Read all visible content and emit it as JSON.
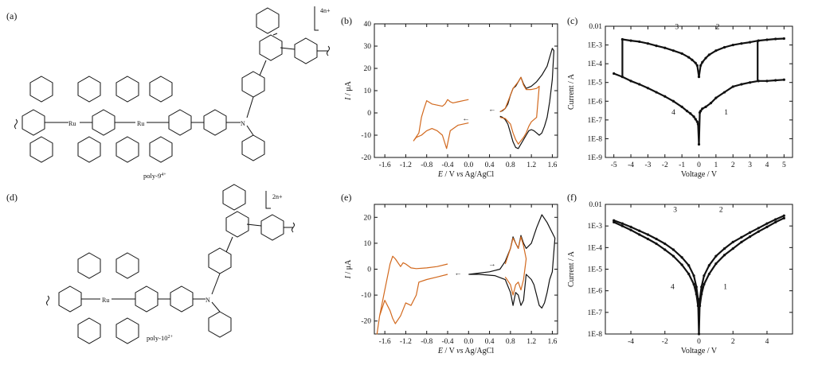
{
  "panels": {
    "a": {
      "label": "(a)",
      "compound": "poly-9",
      "charge_sup": "4+",
      "repeat_charge": "4n+"
    },
    "d": {
      "label": "(d)",
      "compound": "poly-10",
      "charge_sup": "2+",
      "repeat_charge": "2n+"
    }
  },
  "atoms": {
    "N": "N",
    "Ru": "Ru"
  },
  "colors": {
    "cv_oxidation": "#111111",
    "cv_reduction": "#d2691e",
    "iv": "#111111"
  },
  "chart_data": [
    {
      "id": "b",
      "label": "(b)",
      "type": "line",
      "xlabel_parts": [
        "E",
        " / V ",
        "vs",
        " Ag/AgCl"
      ],
      "ylabel_parts": [
        "I",
        " / μA"
      ],
      "xlim": [
        -1.8,
        1.7
      ],
      "ylim": [
        -20,
        40
      ],
      "xticks": [
        -1.6,
        -1.2,
        -0.8,
        -0.4,
        0.0,
        0.4,
        0.8,
        1.2,
        1.6
      ],
      "xtick_labels": [
        "-1.6",
        "-1.2",
        "-0.8",
        "-0.4",
        "0.0",
        "0.4",
        "0.8",
        "1.2",
        "1.6"
      ],
      "yticks": [
        -20,
        -10,
        0,
        10,
        20,
        30,
        40
      ],
      "series": [
        {
          "color": "#111111",
          "x": [
            0.6,
            0.65,
            0.7,
            0.75,
            0.8,
            0.85,
            0.9,
            0.95,
            1.0,
            1.05,
            1.1,
            1.15,
            1.2,
            1.3,
            1.4,
            1.5,
            1.55,
            1.6,
            1.63,
            1.6,
            1.55,
            1.5,
            1.45,
            1.4,
            1.35,
            1.3,
            1.25,
            1.2,
            1.15,
            1.1,
            1.05,
            1.0,
            0.95,
            0.9,
            0.85,
            0.8,
            0.75,
            0.7,
            0.65,
            0.6
          ],
          "y": [
            0.5,
            1.0,
            2.0,
            4.0,
            8.0,
            11.0,
            12.0,
            14.0,
            16.0,
            13.0,
            11.0,
            11.5,
            12.0,
            14.0,
            17.0,
            21.0,
            25.0,
            29.0,
            28.0,
            15.0,
            5.0,
            -2.0,
            -6.0,
            -9.0,
            -10.0,
            -9.0,
            -8.0,
            -7.5,
            -8.0,
            -10.0,
            -12.0,
            -14.0,
            -16.0,
            -15.5,
            -13.0,
            -9.0,
            -5.0,
            -3.0,
            -2.0,
            -1.5
          ]
        },
        {
          "color": "#d2691e",
          "x": [
            0.6,
            0.7,
            0.8,
            0.85,
            0.9,
            0.95,
            1.0,
            1.05,
            1.1,
            1.2,
            1.3,
            1.35,
            1.3,
            1.2,
            1.15,
            1.1,
            1.05,
            1.0,
            0.95,
            0.9,
            0.85,
            0.8,
            0.7,
            0.6
          ],
          "y": [
            0.5,
            2.0,
            8.0,
            11.0,
            12.5,
            14.0,
            16.0,
            12.5,
            10.5,
            10.5,
            11.0,
            12.0,
            -2.0,
            -4.0,
            -6.0,
            -9.0,
            -11.0,
            -12.5,
            -14.0,
            -12.0,
            -9.0,
            -5.0,
            -2.5,
            -2.0
          ]
        },
        {
          "color": "#d2691e",
          "x": [
            0.0,
            -0.2,
            -0.35,
            -0.42,
            -0.5,
            -0.6,
            -0.7,
            -0.8,
            -0.9,
            -1.0,
            -1.05,
            -0.95,
            -0.9,
            -0.85,
            -0.8,
            -0.7,
            -0.6,
            -0.5,
            -0.45,
            -0.4,
            -0.35,
            -0.3,
            -0.2,
            -0.1,
            0.0
          ],
          "y": [
            -4.5,
            -5.5,
            -8.0,
            -16.0,
            -10.0,
            -8.0,
            -7.0,
            -8.0,
            -10.0,
            -11.0,
            -12.5,
            -9.0,
            -2.0,
            2.0,
            5.5,
            4.0,
            3.5,
            3.0,
            4.0,
            6.0,
            5.0,
            4.5,
            5.0,
            5.5,
            6.0
          ]
        }
      ],
      "annotations": [
        {
          "text": "←",
          "x": 0.45,
          "y": 0.5
        },
        {
          "text": "←",
          "x": -0.05,
          "y": -3.5
        }
      ]
    },
    {
      "id": "c",
      "label": "(c)",
      "type": "scatter",
      "xlabel": "Voltage / V",
      "ylabel": "Current / A",
      "yscale": "log",
      "xlim": [
        -5.5,
        5.5
      ],
      "ylim": [
        1e-09,
        0.01
      ],
      "xticks": [
        -5,
        -4,
        -3,
        -2,
        -1,
        0,
        1,
        2,
        3,
        4,
        5
      ],
      "xtick_labels": [
        "-5",
        "-4",
        "-3",
        "-2",
        "-1",
        "0",
        "1",
        "2",
        "3",
        "4",
        "5"
      ],
      "yticks": [
        1e-09,
        1e-08,
        1e-07,
        1e-06,
        1e-05,
        0.0001,
        0.001,
        0.01
      ],
      "ytick_labels": [
        "1E-9",
        "1E-8",
        "1E-7",
        "1E-6",
        "1E-5",
        "1E-4",
        "1E-3",
        "0.01"
      ],
      "series": [
        {
          "color": "#111111",
          "x": [
            -5.0,
            -4.5,
            -4.0,
            -3.5,
            -3.0,
            -2.5,
            -2.0,
            -1.5,
            -1.0,
            -0.7,
            -0.5,
            -0.3,
            -0.2,
            -0.1,
            -0.05,
            0.0,
            0.05,
            0.1,
            0.2,
            0.4,
            0.7,
            1.0,
            1.5,
            2.0,
            2.5,
            3.0,
            3.5,
            4.0,
            4.5,
            5.0
          ],
          "y": [
            3e-05,
            2e-05,
            1.2e-05,
            8e-06,
            5e-06,
            3e-06,
            1.8e-06,
            1e-06,
            5e-07,
            3e-07,
            2.2e-07,
            1.5e-07,
            1.1e-07,
            8e-08,
            6e-08,
            5e-09,
            2.5e-07,
            3e-07,
            4e-07,
            5e-07,
            8e-07,
            1.5e-06,
            3e-06,
            6e-06,
            8e-06,
            1e-05,
            1.2e-05,
            1.2e-05,
            1.3e-05,
            1.4e-05
          ]
        },
        {
          "color": "#111111",
          "x": [
            -4.5,
            -4.0,
            -3.5,
            -3.0,
            -2.5,
            -2.0,
            -1.5,
            -1.0,
            -0.6,
            -0.4,
            -0.2,
            -0.1,
            0.0,
            0.1,
            0.2,
            0.4,
            0.6,
            1.0,
            1.5,
            2.0,
            2.5,
            3.0,
            3.5,
            4.0,
            4.5,
            5.0
          ],
          "y": [
            0.002,
            0.0017,
            0.0015,
            0.0012,
            0.0009,
            0.0007,
            0.0005,
            0.00035,
            0.00022,
            0.00016,
            0.00011,
            8e-05,
            2e-05,
            8e-05,
            0.00012,
            0.0002,
            0.0003,
            0.0005,
            0.00075,
            0.001,
            0.0012,
            0.0014,
            0.0017,
            0.0019,
            0.0021,
            0.0022
          ]
        },
        {
          "color": "#111111",
          "x": [
            -4.5,
            -4.5
          ],
          "y": [
            0.002,
            2e-05
          ]
        },
        {
          "color": "#111111",
          "x": [
            3.45,
            3.45
          ],
          "y": [
            1.3e-05,
            0.0017
          ]
        }
      ],
      "annotations": [
        {
          "text": "1",
          "x": 1.6,
          "y": 2e-07
        },
        {
          "text": "2",
          "x": 1.1,
          "y": 0.007
        },
        {
          "text": "3",
          "x": -1.3,
          "y": 0.007
        },
        {
          "text": "4",
          "x": -1.5,
          "y": 2e-07
        }
      ]
    },
    {
      "id": "e",
      "label": "(e)",
      "type": "line",
      "xlabel_parts": [
        "E",
        " / V ",
        "vs",
        " Ag/AgCl"
      ],
      "ylabel_parts": [
        "I",
        " / μA"
      ],
      "xlim": [
        -1.8,
        1.7
      ],
      "ylim": [
        -25,
        25
      ],
      "xticks": [
        -1.6,
        -1.2,
        -0.8,
        -0.4,
        0.0,
        0.4,
        0.8,
        1.2,
        1.6
      ],
      "xtick_labels": [
        "-1.6",
        "-1.2",
        "-0.8",
        "-0.4",
        "0.0",
        "0.4",
        "0.8",
        "1.2",
        "1.6"
      ],
      "yticks": [
        -20,
        -10,
        0,
        10,
        20
      ],
      "series": [
        {
          "color": "#111111",
          "x": [
            0.0,
            0.4,
            0.6,
            0.7,
            0.8,
            0.85,
            0.9,
            0.95,
            1.0,
            1.05,
            1.1,
            1.2,
            1.3,
            1.4,
            1.5,
            1.6,
            1.65,
            1.6,
            1.55,
            1.5,
            1.45,
            1.4,
            1.35,
            1.3,
            1.25,
            1.2,
            1.1,
            1.05,
            1.0,
            0.95,
            0.9,
            0.85,
            0.8,
            0.7,
            0.5,
            0.2,
            0.0
          ],
          "y": [
            -2.0,
            -1.0,
            0.0,
            3.0,
            8.0,
            12.5,
            10.0,
            8.0,
            13.0,
            10.0,
            8.0,
            10.0,
            16.0,
            21.0,
            18.0,
            14.0,
            12.0,
            -1.0,
            -4.0,
            -9.0,
            -13.0,
            -15.0,
            -14.0,
            -10.0,
            -6.0,
            -4.0,
            -2.0,
            -12.0,
            -14.0,
            -10.0,
            -9.0,
            -14.0,
            -9.0,
            -4.0,
            -2.5,
            -2.0,
            -2.0
          ]
        },
        {
          "color": "#d2691e",
          "x": [
            0.7,
            0.8,
            0.85,
            0.9,
            0.95,
            1.0,
            1.05,
            1.1,
            1.05,
            1.0,
            0.95,
            0.9,
            0.85,
            0.8,
            0.7
          ],
          "y": [
            2.0,
            8.0,
            12.0,
            10.0,
            8.0,
            12.5,
            9.0,
            4.0,
            -4.0,
            -8.0,
            -5.0,
            -6.0,
            -10.0,
            -6.0,
            -3.0
          ]
        },
        {
          "color": "#d2691e",
          "x": [
            -0.4,
            -0.6,
            -0.8,
            -0.95,
            -1.0,
            -1.1,
            -1.2,
            -1.3,
            -1.4,
            -1.45,
            -1.5,
            -1.6,
            -1.7,
            -1.75,
            -1.7,
            -1.6,
            -1.5,
            -1.45,
            -1.4,
            -1.3,
            -1.25,
            -1.2,
            -1.1,
            -1.0,
            -0.8,
            -0.6,
            -0.4
          ],
          "y": [
            -2.0,
            -3.0,
            -4.0,
            -5.0,
            -10.0,
            -14.0,
            -13.0,
            -18.0,
            -21.0,
            -19.0,
            -16.0,
            -12.0,
            -18.0,
            -25.0,
            -18.0,
            -8.0,
            2.0,
            5.0,
            4.0,
            1.0,
            2.5,
            2.0,
            0.5,
            0.2,
            0.5,
            1.0,
            2.0
          ]
        }
      ],
      "annotations": [
        {
          "text": "→",
          "x": 0.45,
          "y": 1.0
        },
        {
          "text": "←",
          "x": -0.2,
          "y": -2.5
        }
      ]
    },
    {
      "id": "f",
      "label": "(f)",
      "type": "scatter",
      "xlabel": "Voltage / V",
      "ylabel": "Current / A",
      "yscale": "log",
      "xlim": [
        -5.5,
        5.5
      ],
      "ylim": [
        1e-08,
        0.01
      ],
      "xticks": [
        -4,
        -2,
        0,
        2,
        4
      ],
      "xtick_labels": [
        "-4",
        "-2",
        "0",
        "2",
        "4"
      ],
      "yticks": [
        1e-08,
        1e-07,
        1e-06,
        1e-05,
        0.0001,
        0.001,
        0.01
      ],
      "ytick_labels": [
        "1E-8",
        "1E-7",
        "1E-6",
        "1E-5",
        "1E-4",
        "1E-3",
        "0.01"
      ],
      "series": [
        {
          "color": "#111111",
          "x": [
            -5.0,
            -4.5,
            -4.0,
            -3.5,
            -3.0,
            -2.5,
            -2.0,
            -1.5,
            -1.0,
            -0.6,
            -0.3,
            -0.15,
            -0.05,
            0.0,
            0.05,
            0.15,
            0.3,
            0.6,
            1.0,
            1.5,
            2.0,
            2.5,
            3.0,
            3.5,
            4.0,
            4.5,
            5.0
          ],
          "y": [
            0.0018,
            0.0013,
            0.0009,
            0.0006,
            0.0004,
            0.00025,
            0.00015,
            8e-05,
            3.5e-05,
            1.5e-05,
            5e-06,
            1.5e-06,
            4e-07,
            1e-08,
            4e-07,
            1.5e-06,
            5e-06,
            1.5e-05,
            4e-05,
            9e-05,
            0.00018,
            0.0003,
            0.0005,
            0.0008,
            0.0013,
            0.002,
            0.003
          ]
        },
        {
          "color": "#111111",
          "x": [
            -5.0,
            -4.5,
            -4.0,
            -3.5,
            -3.0,
            -2.5,
            -2.0,
            -1.5,
            -1.0,
            -0.6,
            -0.3,
            -0.15,
            -0.05,
            0.05,
            0.15,
            0.3,
            0.6,
            1.0,
            1.5,
            2.0,
            2.5,
            3.0,
            3.5,
            4.0,
            4.5,
            5.0
          ],
          "y": [
            0.0015,
            0.001,
            0.00065,
            0.0004,
            0.00025,
            0.00015,
            8e-05,
            4e-05,
            1.6e-05,
            6e-06,
            2e-06,
            7e-07,
            2e-07,
            2e-07,
            7e-07,
            2e-06,
            6e-06,
            1.8e-05,
            4.5e-05,
            9e-05,
            0.00018,
            0.00032,
            0.00055,
            0.0009,
            0.0015,
            0.0023
          ]
        }
      ],
      "annotations": [
        {
          "text": "1",
          "x": 1.55,
          "y": 1.2e-06
        },
        {
          "text": "2",
          "x": 1.3,
          "y": 0.0045
        },
        {
          "text": "3",
          "x": -1.4,
          "y": 0.0045
        },
        {
          "text": "4",
          "x": -1.55,
          "y": 1.2e-06
        }
      ]
    }
  ]
}
